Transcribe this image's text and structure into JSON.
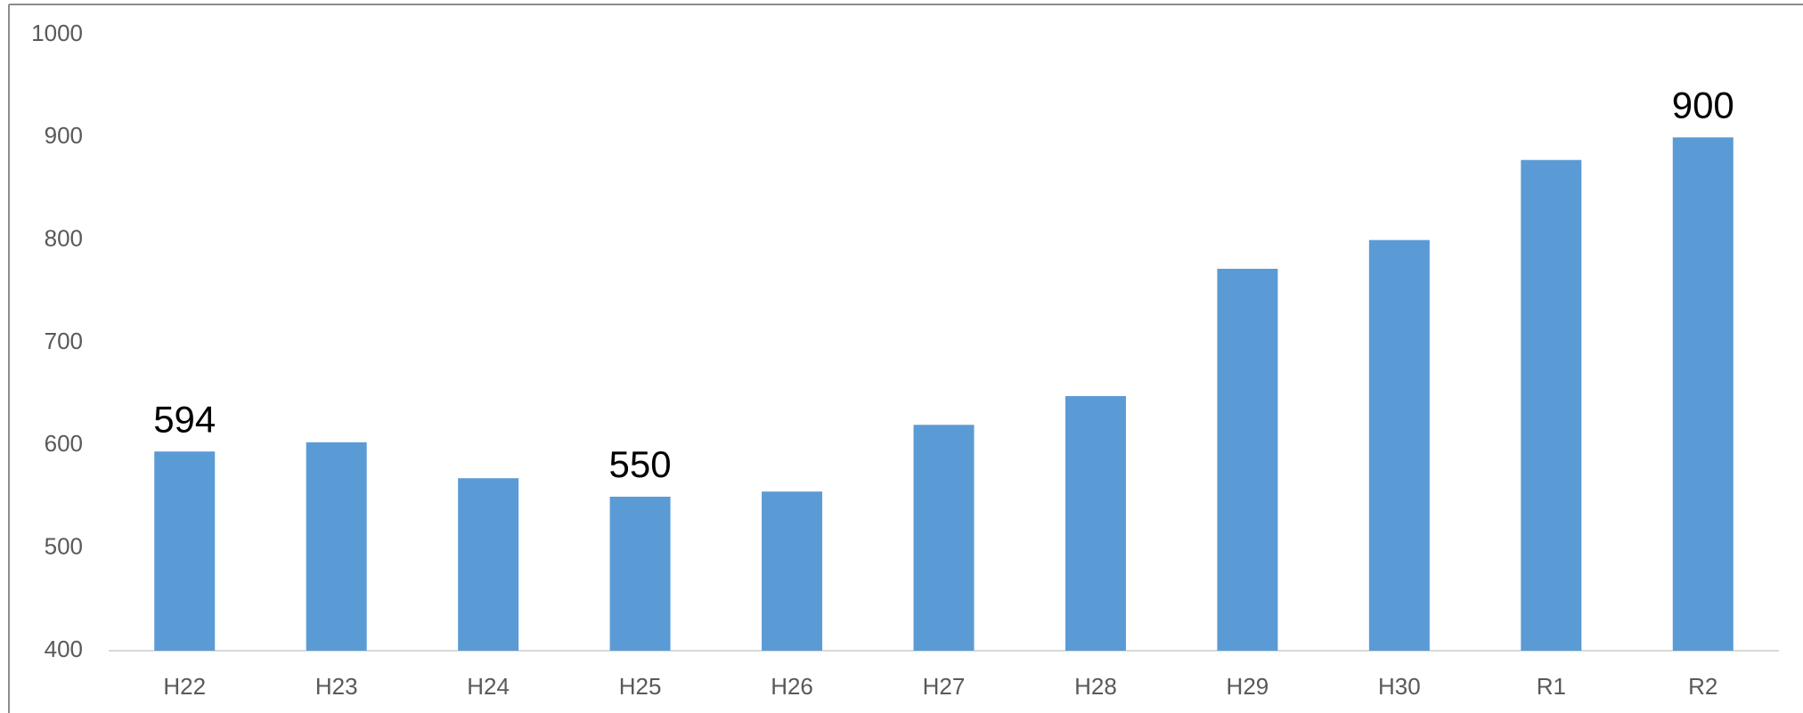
{
  "chart_data": {
    "type": "bar",
    "categories": [
      "H22",
      "H23",
      "H24",
      "H25",
      "H26",
      "H27",
      "H28",
      "H29",
      "H30",
      "R1",
      "R2"
    ],
    "values": [
      594,
      603,
      568,
      550,
      555,
      620,
      648,
      772,
      800,
      878,
      900
    ],
    "show_value_label": [
      true,
      false,
      false,
      true,
      false,
      false,
      false,
      false,
      false,
      false,
      true
    ],
    "color": "#5b9bd5",
    "ylim": [
      400,
      1000
    ],
    "yticks": [
      400,
      500,
      600,
      700,
      800,
      900,
      1000
    ],
    "grid": false
  }
}
